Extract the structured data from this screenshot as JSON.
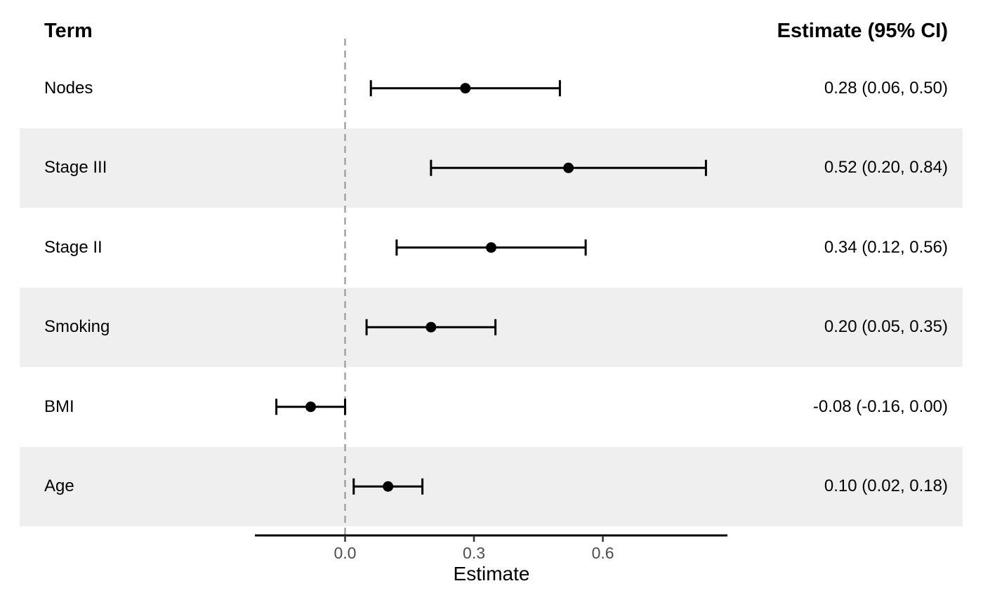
{
  "header": {
    "term": "Term",
    "estimate": "Estimate (95% CI)"
  },
  "chart_data": {
    "type": "scatter",
    "subtype": "forest-plot",
    "title": "",
    "xlabel": "Estimate",
    "ylabel": "",
    "xlim": [
      -0.21,
      0.89
    ],
    "grid": false,
    "reference_line": 0.0,
    "x_ticks": [
      {
        "value": 0.0,
        "label": "0.0"
      },
      {
        "value": 0.3,
        "label": "0.3"
      },
      {
        "value": 0.6,
        "label": "0.6"
      }
    ],
    "rows": [
      {
        "term": "Nodes",
        "estimate": 0.28,
        "ci_low": 0.06,
        "ci_high": 0.5,
        "label": "0.28 (0.06, 0.50)"
      },
      {
        "term": "Stage III",
        "estimate": 0.52,
        "ci_low": 0.2,
        "ci_high": 0.84,
        "label": "0.52 (0.20, 0.84)"
      },
      {
        "term": "Stage II",
        "estimate": 0.34,
        "ci_low": 0.12,
        "ci_high": 0.56,
        "label": "0.34 (0.12, 0.56)"
      },
      {
        "term": "Smoking",
        "estimate": 0.2,
        "ci_low": 0.05,
        "ci_high": 0.35,
        "label": "0.20 (0.05, 0.35)"
      },
      {
        "term": "BMI",
        "estimate": -0.08,
        "ci_low": -0.16,
        "ci_high": 0.0,
        "label": "-0.08 (-0.16, 0.00)"
      },
      {
        "term": "Age",
        "estimate": 0.1,
        "ci_low": 0.02,
        "ci_high": 0.18,
        "label": "0.10 (0.02, 0.18)"
      }
    ]
  },
  "colors": {
    "stripe": "#EFEFEF",
    "marker": "#000000",
    "whisker": "#000000",
    "axis_line": "#000000",
    "tick_text": "#4D4D4D",
    "dashed_line": "#A3A3A3",
    "background": "#FFFFFF"
  }
}
